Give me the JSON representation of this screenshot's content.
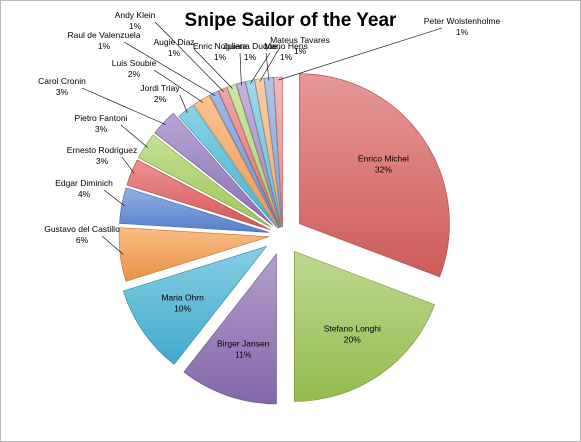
{
  "chart_data": {
    "type": "pie",
    "title": "Snipe Sailor of the Year",
    "slices": [
      {
        "label": "Enrico Michel",
        "value": 32,
        "pct": "32%",
        "color": "#d9615f"
      },
      {
        "label": "Stefano Longhi",
        "value": 20,
        "pct": "20%",
        "color": "#9bc553"
      },
      {
        "label": "Birger Jansen",
        "value": 11,
        "pct": "11%",
        "color": "#8a6bb2"
      },
      {
        "label": "Maria Ohrn",
        "value": 10,
        "pct": "10%",
        "color": "#45b3d6"
      },
      {
        "label": "Gustavo del Castillo",
        "value": 6,
        "pct": "6%",
        "color": "#f59a46"
      },
      {
        "label": "Edgar Diminich",
        "value": 4,
        "pct": "4%",
        "color": "#5b86d4"
      },
      {
        "label": "Ernesto Rodriguez",
        "value": 3,
        "pct": "3%",
        "color": "#e2595a"
      },
      {
        "label": "Pietro Fantoni",
        "value": 3,
        "pct": "3%",
        "color": "#a6d05a"
      },
      {
        "label": "Carol Cronin",
        "value": 3,
        "pct": "3%",
        "color": "#9175bf"
      },
      {
        "label": "Jordi Triay",
        "value": 2,
        "pct": "2%",
        "color": "#4bbad9"
      },
      {
        "label": "Luis Soubie",
        "value": 2,
        "pct": "2%",
        "color": "#f7a357"
      },
      {
        "label": "Raul de Valenzuela",
        "value": 1,
        "pct": "1%",
        "color": "#6f97da"
      },
      {
        "label": "Andy Klein",
        "value": 1,
        "pct": "1%",
        "color": "#e77575"
      },
      {
        "label": "Augie Diaz",
        "value": 1,
        "pct": "1%",
        "color": "#b4d977"
      },
      {
        "label": "Enric Noguera",
        "value": 1,
        "pct": "1%",
        "color": "#a58ac9"
      },
      {
        "label": "Juliana Duque",
        "value": 1,
        "pct": "1%",
        "color": "#6cc4df"
      },
      {
        "label": "Mateus Tavares",
        "value": 1,
        "pct": "1%",
        "color": "#f8b476"
      },
      {
        "label": "Mario Hens",
        "value": 1,
        "pct": "1%",
        "color": "#86a7e0"
      },
      {
        "label": "Peter Wolstenholme",
        "value": 1,
        "pct": "1%",
        "color": "#f09090"
      }
    ]
  }
}
